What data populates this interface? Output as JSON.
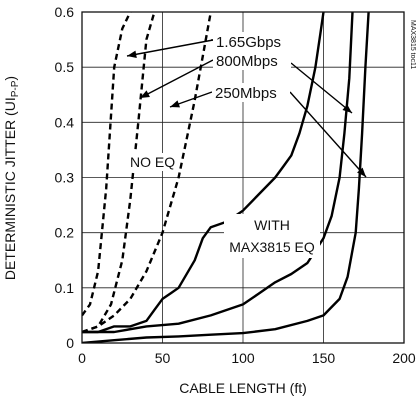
{
  "chart_data": {
    "type": "line",
    "xlabel": "CABLE LENGTH (ft)",
    "ylabel_main": "DETERMINISTIC JITTER (UI",
    "ylabel_sub": "P-P",
    "ylabel_close": ")",
    "side_label": "MAX3815 toc11",
    "xlim": [
      0,
      200
    ],
    "ylim": [
      0,
      0.6
    ],
    "xticks": [
      0,
      50,
      100,
      150,
      200
    ],
    "xtick_labels": [
      "0",
      "50",
      "100",
      "150",
      "200"
    ],
    "yticks": [
      0,
      0.1,
      0.2,
      0.3,
      0.4,
      0.5,
      0.6
    ],
    "ytick_labels": [
      "0",
      "0.1",
      "0.2",
      "0.3",
      "0.4",
      "0.5",
      "0.6"
    ],
    "grid": true,
    "series": [
      {
        "name": "1.65Gbps NO EQ",
        "style": "dashed",
        "x": [
          0,
          5,
          10,
          15,
          20,
          25,
          30
        ],
        "y": [
          0.05,
          0.07,
          0.13,
          0.28,
          0.5,
          0.57,
          0.6
        ]
      },
      {
        "name": "800Mbps NO EQ",
        "style": "dashed",
        "x": [
          0,
          10,
          18,
          25,
          30,
          35,
          40,
          45
        ],
        "y": [
          0.02,
          0.03,
          0.07,
          0.15,
          0.26,
          0.4,
          0.55,
          0.6
        ]
      },
      {
        "name": "250Mbps NO EQ",
        "style": "dashed",
        "x": [
          0,
          10,
          20,
          30,
          40,
          50,
          60,
          65,
          70,
          75,
          80
        ],
        "y": [
          0.02,
          0.03,
          0.05,
          0.08,
          0.13,
          0.2,
          0.3,
          0.37,
          0.44,
          0.52,
          0.6
        ]
      },
      {
        "name": "1.65Gbps WITH MAX3815 EQ",
        "style": "solid",
        "x": [
          0,
          10,
          20,
          30,
          40,
          45,
          50,
          55,
          60,
          70,
          75,
          80,
          90,
          100,
          110,
          120,
          125,
          130,
          135,
          140,
          145,
          148,
          150
        ],
        "y": [
          0.02,
          0.02,
          0.03,
          0.03,
          0.04,
          0.06,
          0.08,
          0.09,
          0.1,
          0.15,
          0.19,
          0.21,
          0.22,
          0.24,
          0.27,
          0.3,
          0.32,
          0.34,
          0.38,
          0.43,
          0.5,
          0.56,
          0.6
        ]
      },
      {
        "name": "800Mbps WITH MAX3815 EQ",
        "style": "solid",
        "x": [
          0,
          20,
          40,
          60,
          80,
          100,
          110,
          120,
          130,
          140,
          150,
          155,
          160,
          163,
          166,
          168
        ],
        "y": [
          0.02,
          0.02,
          0.03,
          0.035,
          0.05,
          0.07,
          0.09,
          0.11,
          0.125,
          0.145,
          0.19,
          0.23,
          0.3,
          0.38,
          0.48,
          0.6
        ]
      },
      {
        "name": "250Mbps WITH MAX3815 EQ",
        "style": "solid",
        "x": [
          0,
          20,
          40,
          60,
          80,
          100,
          120,
          140,
          150,
          160,
          165,
          170,
          172,
          174,
          176,
          178
        ],
        "y": [
          0.0,
          0.005,
          0.01,
          0.012,
          0.015,
          0.018,
          0.025,
          0.04,
          0.05,
          0.08,
          0.12,
          0.2,
          0.28,
          0.38,
          0.5,
          0.6
        ]
      }
    ],
    "annotations": [
      {
        "text": "1.65Gbps"
      },
      {
        "text": "800Mbps"
      },
      {
        "text": "250Mbps"
      },
      {
        "text": "NO EQ"
      },
      {
        "text": "WITH"
      },
      {
        "text": "MAX3815 EQ"
      }
    ]
  }
}
